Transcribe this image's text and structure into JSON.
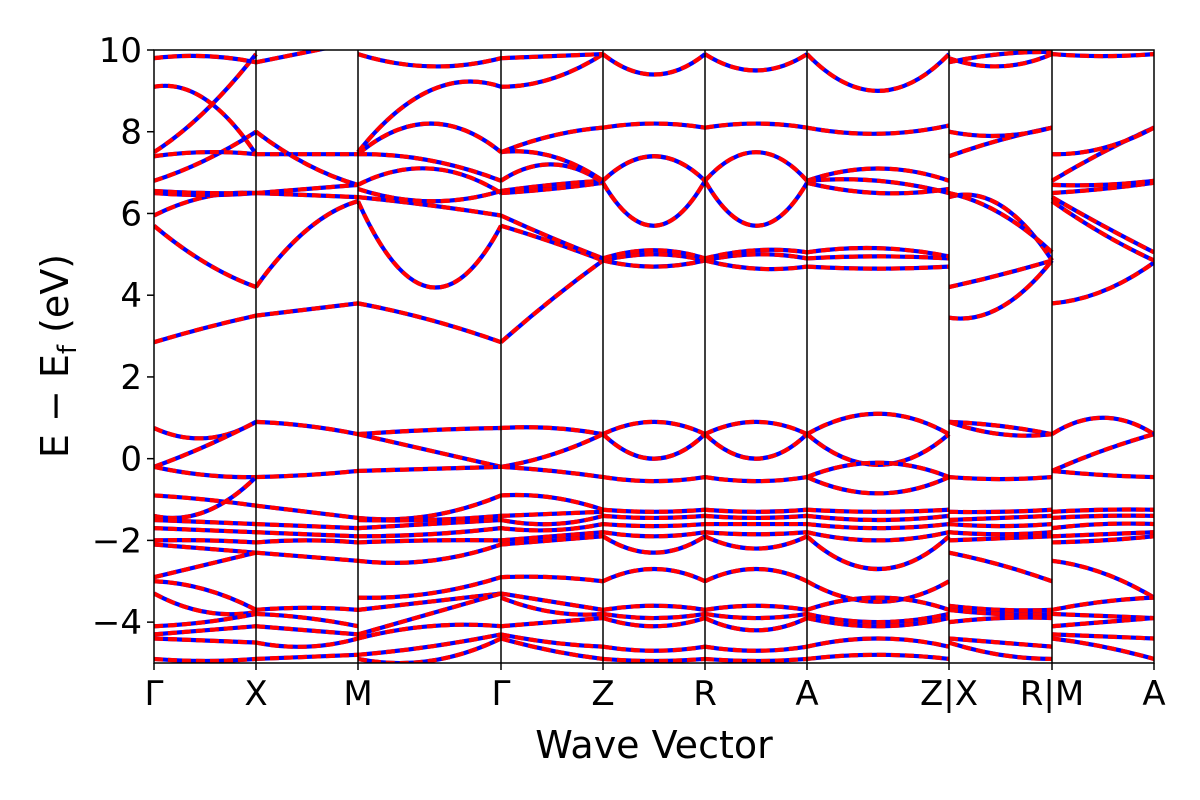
{
  "chart_data": {
    "type": "line",
    "title": "",
    "xlabel": "Wave Vector",
    "ylabel_parts": {
      "base": "E − E",
      "subscript": "f",
      "unit": " (eV)"
    },
    "ylim": [
      -5,
      10
    ],
    "yticks": [
      -4,
      -2,
      0,
      2,
      4,
      6,
      8,
      10
    ],
    "ytick_labels": [
      "−4",
      "−2",
      "0",
      "2",
      "4",
      "6",
      "8",
      "10"
    ],
    "grid": false,
    "legend": "none",
    "colors": {
      "primary": "#ff0000",
      "overlay": "#0000ff",
      "axis": "#000000"
    },
    "kpath": {
      "x_range": [
        0,
        1
      ],
      "points": [
        {
          "x": 0.0,
          "label": "Γ"
        },
        {
          "x": 0.102,
          "label": "X"
        },
        {
          "x": 0.204,
          "label": "M"
        },
        {
          "x": 0.347,
          "label": "Γ"
        },
        {
          "x": 0.449,
          "label": "Z"
        },
        {
          "x": 0.551,
          "label": "R"
        },
        {
          "x": 0.653,
          "label": "A"
        },
        {
          "x": 0.795,
          "label": "Z|X"
        },
        {
          "x": 0.898,
          "label": "R|M"
        },
        {
          "x": 1.0,
          "label": "A"
        }
      ]
    },
    "segments": [
      {
        "x_start": 0.0,
        "x_end": 0.102,
        "bands": [
          [
            2.85,
            3.2,
            3.5
          ],
          [
            5.7,
            4.8,
            4.2
          ],
          [
            5.95,
            6.4,
            6.5
          ],
          [
            6.5,
            6.45,
            6.5
          ],
          [
            6.55,
            6.5,
            6.5
          ],
          [
            6.8,
            7.3,
            8.0
          ],
          [
            7.4,
            7.5,
            7.45
          ],
          [
            7.5,
            8.5,
            9.9
          ],
          [
            9.1,
            8.8,
            7.45
          ],
          [
            9.8,
            9.85,
            9.7
          ],
          [
            0.75,
            0.5,
            0.9
          ],
          [
            -0.2,
            0.3,
            0.9
          ],
          [
            -0.2,
            -0.4,
            -0.45
          ],
          [
            -0.9,
            -1.0,
            -1.15
          ],
          [
            -1.4,
            -1.3,
            -0.45
          ],
          [
            -1.5,
            -1.55,
            -1.6
          ],
          [
            -1.7,
            -1.75,
            -1.8
          ],
          [
            -2.0,
            -2.0,
            -2.05
          ],
          [
            -2.1,
            -2.2,
            -2.3
          ],
          [
            -2.9,
            -2.6,
            -2.3
          ],
          [
            -3.0,
            -3.2,
            -3.7
          ],
          [
            -3.3,
            -3.75,
            -3.75
          ],
          [
            -4.1,
            -4.0,
            -3.8
          ],
          [
            -4.3,
            -4.2,
            -4.1
          ],
          [
            -4.4,
            -4.45,
            -4.5
          ],
          [
            -4.9,
            -4.95,
            -4.9
          ]
        ]
      },
      {
        "x_start": 0.102,
        "x_end": 0.204,
        "bands": [
          [
            3.5,
            3.65,
            3.8
          ],
          [
            4.2,
            5.6,
            6.3
          ],
          [
            6.5,
            6.45,
            6.4
          ],
          [
            6.5,
            6.6,
            6.7
          ],
          [
            7.45,
            7.45,
            7.45
          ],
          [
            8.0,
            7.2,
            6.7
          ],
          [
            9.7,
            9.95,
            10.2
          ],
          [
            0.9,
            0.8,
            0.6
          ],
          [
            -0.45,
            -0.4,
            -0.3
          ],
          [
            -1.15,
            -1.3,
            -1.45
          ],
          [
            -1.6,
            -1.65,
            -1.7
          ],
          [
            -1.8,
            -1.85,
            -1.9
          ],
          [
            -2.05,
            -2.0,
            -2.05
          ],
          [
            -2.3,
            -2.4,
            -2.5
          ],
          [
            -3.7,
            -3.65,
            -3.7
          ],
          [
            -3.8,
            -3.9,
            -4.1
          ],
          [
            -4.1,
            -4.2,
            -4.3
          ],
          [
            -4.5,
            -4.6,
            -4.4
          ],
          [
            -4.9,
            -4.85,
            -4.8
          ]
        ]
      },
      {
        "x_start": 0.204,
        "x_end": 0.347,
        "bands": [
          [
            3.8,
            3.4,
            2.85
          ],
          [
            6.3,
            4.2,
            5.7
          ],
          [
            6.4,
            6.2,
            5.95
          ],
          [
            6.7,
            7.1,
            6.5
          ],
          [
            6.6,
            6.3,
            6.55
          ],
          [
            7.45,
            7.3,
            6.8
          ],
          [
            7.45,
            8.2,
            7.5
          ],
          [
            7.5,
            9.0,
            9.1
          ],
          [
            9.9,
            9.6,
            9.8
          ],
          [
            0.6,
            0.7,
            0.75
          ],
          [
            0.6,
            0.2,
            -0.2
          ],
          [
            -0.3,
            -0.25,
            -0.2
          ],
          [
            -1.45,
            -1.4,
            -0.9
          ],
          [
            -1.5,
            -1.5,
            -1.4
          ],
          [
            -1.7,
            -1.6,
            -1.5
          ],
          [
            -1.9,
            -1.85,
            -1.7
          ],
          [
            -2.05,
            -2.0,
            -2.0
          ],
          [
            -2.5,
            -2.5,
            -2.1
          ],
          [
            -3.4,
            -3.3,
            -2.9
          ],
          [
            -3.7,
            -3.5,
            -3.3
          ],
          [
            -4.3,
            -3.8,
            -3.3
          ],
          [
            -4.4,
            -4.1,
            -4.1
          ],
          [
            -4.8,
            -4.6,
            -4.3
          ],
          [
            -4.9,
            -4.95,
            -4.4
          ]
        ]
      },
      {
        "x_start": 0.347,
        "x_end": 0.449,
        "bands": [
          [
            2.85,
            3.9,
            4.85
          ],
          [
            5.7,
            5.3,
            4.85
          ],
          [
            5.95,
            5.4,
            4.9
          ],
          [
            6.5,
            6.6,
            6.75
          ],
          [
            6.55,
            6.7,
            6.8
          ],
          [
            6.8,
            7.2,
            6.75
          ],
          [
            7.5,
            7.4,
            6.8
          ],
          [
            7.5,
            7.9,
            8.1
          ],
          [
            9.1,
            9.3,
            9.9
          ],
          [
            9.8,
            9.85,
            9.9
          ],
          [
            0.75,
            0.75,
            0.6
          ],
          [
            -0.2,
            0.1,
            0.6
          ],
          [
            -0.2,
            -0.3,
            -0.45
          ],
          [
            -0.9,
            -0.95,
            -1.25
          ],
          [
            -1.4,
            -1.35,
            -1.3
          ],
          [
            -1.5,
            -1.6,
            -1.4
          ],
          [
            -1.7,
            -1.75,
            -1.6
          ],
          [
            -2.0,
            -1.9,
            -1.8
          ],
          [
            -2.1,
            -2.0,
            -1.9
          ],
          [
            -2.9,
            -2.9,
            -3.0
          ],
          [
            -3.3,
            -3.5,
            -3.7
          ],
          [
            -3.4,
            -3.75,
            -3.8
          ],
          [
            -4.1,
            -4.0,
            -3.9
          ],
          [
            -4.3,
            -4.5,
            -4.6
          ],
          [
            -4.4,
            -4.7,
            -4.9
          ]
        ]
      },
      {
        "x_start": 0.449,
        "x_end": 0.551,
        "bands": [
          [
            4.85,
            4.7,
            4.85
          ],
          [
            4.85,
            5.0,
            4.85
          ],
          [
            4.9,
            5.1,
            4.9
          ],
          [
            6.75,
            5.7,
            6.8
          ],
          [
            6.8,
            7.4,
            6.8
          ],
          [
            8.1,
            8.2,
            8.1
          ],
          [
            9.9,
            9.4,
            9.9
          ],
          [
            0.6,
            0.9,
            0.6
          ],
          [
            0.6,
            0.0,
            0.6
          ],
          [
            -0.45,
            -0.55,
            -0.45
          ],
          [
            -1.25,
            -1.3,
            -1.25
          ],
          [
            -1.4,
            -1.45,
            -1.4
          ],
          [
            -1.6,
            -1.65,
            -1.6
          ],
          [
            -1.8,
            -1.9,
            -1.8
          ],
          [
            -1.9,
            -2.3,
            -1.9
          ],
          [
            -3.0,
            -2.7,
            -3.0
          ],
          [
            -3.7,
            -3.6,
            -3.7
          ],
          [
            -3.8,
            -3.9,
            -3.8
          ],
          [
            -3.9,
            -4.1,
            -3.9
          ],
          [
            -4.6,
            -4.7,
            -4.6
          ],
          [
            -4.9,
            -4.95,
            -4.9
          ]
        ]
      },
      {
        "x_start": 0.551,
        "x_end": 0.653,
        "bands": [
          [
            4.85,
            4.65,
            4.7
          ],
          [
            4.85,
            5.0,
            4.9
          ],
          [
            4.9,
            5.1,
            5.05
          ],
          [
            6.8,
            5.7,
            6.75
          ],
          [
            6.8,
            7.5,
            6.8
          ],
          [
            8.1,
            8.2,
            8.1
          ],
          [
            9.9,
            9.5,
            9.9
          ],
          [
            0.6,
            0.9,
            0.6
          ],
          [
            0.6,
            0.0,
            0.6
          ],
          [
            -0.45,
            -0.55,
            -0.45
          ],
          [
            -1.25,
            -1.3,
            -1.25
          ],
          [
            -1.4,
            -1.45,
            -1.4
          ],
          [
            -1.6,
            -1.6,
            -1.6
          ],
          [
            -1.8,
            -1.85,
            -1.8
          ],
          [
            -1.9,
            -2.2,
            -1.9
          ],
          [
            -3.0,
            -2.7,
            -3.0
          ],
          [
            -3.7,
            -3.6,
            -3.7
          ],
          [
            -3.8,
            -3.9,
            -3.8
          ],
          [
            -3.9,
            -4.2,
            -3.9
          ],
          [
            -4.6,
            -4.7,
            -4.6
          ],
          [
            -4.9,
            -4.95,
            -4.9
          ]
        ]
      },
      {
        "x_start": 0.653,
        "x_end": 0.795,
        "bands": [
          [
            4.7,
            4.65,
            4.7
          ],
          [
            4.9,
            4.95,
            4.9
          ],
          [
            5.05,
            5.15,
            4.95
          ],
          [
            6.75,
            6.5,
            6.6
          ],
          [
            6.8,
            7.1,
            6.8
          ],
          [
            6.8,
            6.8,
            6.5
          ],
          [
            8.1,
            7.95,
            8.15
          ],
          [
            9.9,
            9.0,
            9.9
          ],
          [
            0.6,
            1.1,
            0.6
          ],
          [
            0.6,
            -0.15,
            0.6
          ],
          [
            -0.45,
            -0.1,
            -0.45
          ],
          [
            -0.45,
            -0.85,
            -0.45
          ],
          [
            -1.25,
            -1.3,
            -1.25
          ],
          [
            -1.4,
            -1.5,
            -1.4
          ],
          [
            -1.6,
            -1.7,
            -1.6
          ],
          [
            -1.8,
            -2.0,
            -1.8
          ],
          [
            -1.9,
            -2.7,
            -1.9
          ],
          [
            -3.0,
            -3.5,
            -3.0
          ],
          [
            -3.7,
            -3.4,
            -3.7
          ],
          [
            -3.8,
            -4.0,
            -3.8
          ],
          [
            -3.9,
            -4.1,
            -3.9
          ],
          [
            -4.6,
            -4.4,
            -4.6
          ],
          [
            -4.9,
            -4.8,
            -4.9
          ]
        ]
      },
      {
        "x_start": 0.795,
        "x_end": 0.898,
        "bands": [
          [
            3.45,
            3.7,
            4.85
          ],
          [
            4.2,
            4.5,
            4.85
          ],
          [
            6.4,
            6.2,
            4.85
          ],
          [
            6.5,
            6.0,
            5.05
          ],
          [
            7.4,
            7.8,
            8.1
          ],
          [
            8.0,
            7.9,
            8.1
          ],
          [
            9.8,
            9.6,
            9.9
          ],
          [
            9.7,
            9.9,
            9.95
          ],
          [
            0.9,
            0.8,
            0.6
          ],
          [
            0.9,
            0.6,
            0.6
          ],
          [
            -0.45,
            -0.5,
            -0.45
          ],
          [
            -1.3,
            -1.3,
            -1.25
          ],
          [
            -1.5,
            -1.45,
            -1.4
          ],
          [
            -1.6,
            -1.65,
            -1.6
          ],
          [
            -1.8,
            -1.85,
            -1.8
          ],
          [
            -2.0,
            -1.95,
            -1.9
          ],
          [
            -2.3,
            -2.6,
            -3.0
          ],
          [
            -3.6,
            -3.7,
            -3.7
          ],
          [
            -3.7,
            -3.8,
            -3.8
          ],
          [
            -4.0,
            -3.9,
            -3.9
          ],
          [
            -4.4,
            -4.5,
            -4.6
          ],
          [
            -4.5,
            -4.8,
            -4.9
          ]
        ]
      },
      {
        "x_start": 0.898,
        "x_end": 1.0,
        "bands": [
          [
            3.8,
            4.1,
            4.8
          ],
          [
            6.3,
            5.5,
            4.85
          ],
          [
            6.4,
            5.7,
            5.05
          ],
          [
            6.5,
            6.6,
            6.75
          ],
          [
            6.7,
            6.7,
            6.8
          ],
          [
            6.8,
            7.5,
            8.1
          ],
          [
            7.45,
            7.6,
            8.1
          ],
          [
            9.9,
            9.85,
            9.9
          ],
          [
            0.6,
            1.0,
            0.6
          ],
          [
            -0.3,
            0.2,
            0.6
          ],
          [
            -0.3,
            -0.4,
            -0.45
          ],
          [
            -1.3,
            -1.25,
            -1.25
          ],
          [
            -1.45,
            -1.4,
            -1.4
          ],
          [
            -1.7,
            -1.6,
            -1.6
          ],
          [
            -1.9,
            -1.85,
            -1.8
          ],
          [
            -2.05,
            -2.0,
            -1.9
          ],
          [
            -2.5,
            -2.8,
            -3.4
          ],
          [
            -3.7,
            -3.5,
            -3.4
          ],
          [
            -3.8,
            -3.85,
            -3.9
          ],
          [
            -4.1,
            -4.0,
            -3.9
          ],
          [
            -4.3,
            -4.35,
            -4.4
          ],
          [
            -4.4,
            -4.6,
            -4.9
          ]
        ]
      }
    ]
  }
}
